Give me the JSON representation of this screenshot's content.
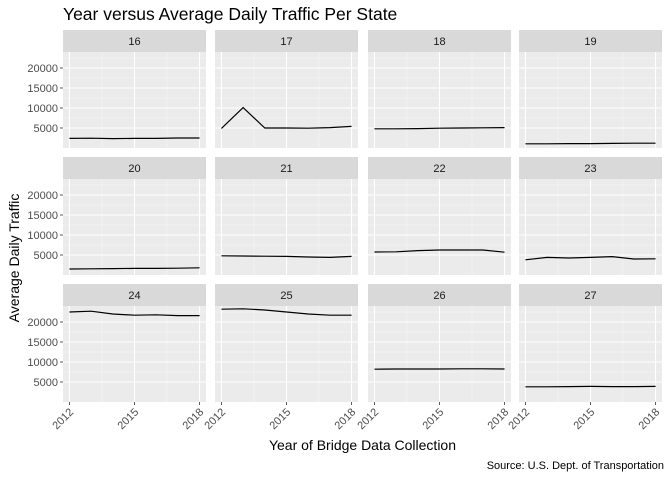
{
  "chart_data": {
    "type": "line",
    "title": "Year versus Average Daily Traffic Per State",
    "xlabel": "Year of Bridge Data Collection",
    "ylabel": "Average Daily Traffic",
    "caption": "Source: U.S. Dept. of Transportation",
    "xlim": [
      2012,
      2018
    ],
    "ylim": [
      0,
      24000
    ],
    "x_ticks": [
      2012,
      2015,
      2018
    ],
    "y_ticks": [
      5000,
      10000,
      15000,
      20000
    ],
    "grid": true,
    "facets": [
      {
        "label": "16",
        "x": [
          2012,
          2013,
          2014,
          2015,
          2016,
          2017,
          2018
        ],
        "y": [
          2400,
          2450,
          2350,
          2400,
          2400,
          2500,
          2500
        ]
      },
      {
        "label": "17",
        "x": [
          2012,
          2013,
          2014,
          2015,
          2016,
          2017,
          2018
        ],
        "y": [
          4900,
          10100,
          5000,
          5000,
          4950,
          5100,
          5400
        ]
      },
      {
        "label": "18",
        "x": [
          2012,
          2013,
          2014,
          2015,
          2016,
          2017,
          2018
        ],
        "y": [
          4800,
          4800,
          4850,
          4950,
          5000,
          5050,
          5100
        ]
      },
      {
        "label": "19",
        "x": [
          2012,
          2013,
          2014,
          2015,
          2016,
          2017,
          2018
        ],
        "y": [
          1050,
          1050,
          1100,
          1100,
          1150,
          1200,
          1200
        ]
      },
      {
        "label": "20",
        "x": [
          2012,
          2013,
          2014,
          2015,
          2016,
          2017,
          2018
        ],
        "y": [
          1500,
          1550,
          1600,
          1650,
          1650,
          1700,
          1800
        ]
      },
      {
        "label": "21",
        "x": [
          2012,
          2013,
          2014,
          2015,
          2016,
          2017,
          2018
        ],
        "y": [
          4800,
          4750,
          4700,
          4650,
          4500,
          4400,
          4650
        ]
      },
      {
        "label": "22",
        "x": [
          2012,
          2013,
          2014,
          2015,
          2016,
          2017,
          2018
        ],
        "y": [
          5750,
          5800,
          6100,
          6250,
          6250,
          6250,
          5700
        ]
      },
      {
        "label": "23",
        "x": [
          2012,
          2013,
          2014,
          2015,
          2016,
          2017,
          2018
        ],
        "y": [
          3800,
          4400,
          4250,
          4400,
          4600,
          4000,
          4050
        ]
      },
      {
        "label": "24",
        "x": [
          2012,
          2013,
          2014,
          2015,
          2016,
          2017,
          2018
        ],
        "y": [
          22500,
          22700,
          22000,
          21700,
          21800,
          21600,
          21600
        ]
      },
      {
        "label": "25",
        "x": [
          2012,
          2013,
          2014,
          2015,
          2016,
          2017,
          2018
        ],
        "y": [
          23200,
          23300,
          23000,
          22500,
          22000,
          21700,
          21700
        ]
      },
      {
        "label": "26",
        "x": [
          2012,
          2013,
          2014,
          2015,
          2016,
          2017,
          2018
        ],
        "y": [
          8200,
          8250,
          8250,
          8250,
          8300,
          8300,
          8250
        ]
      },
      {
        "label": "27",
        "x": [
          2012,
          2013,
          2014,
          2015,
          2016,
          2017,
          2018
        ],
        "y": [
          3800,
          3800,
          3850,
          3900,
          3850,
          3850,
          3900
        ]
      }
    ]
  }
}
